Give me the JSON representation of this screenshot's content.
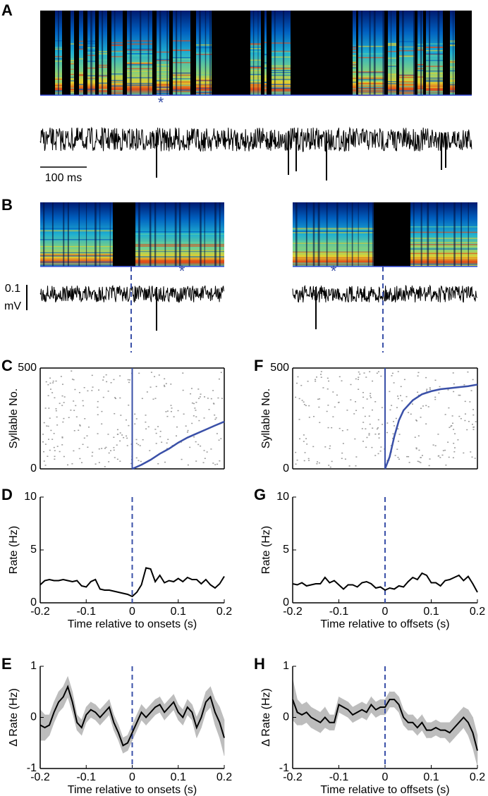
{
  "panels": {
    "A": {
      "label": "A",
      "marker": "*",
      "scale_bar": "100 ms"
    },
    "B": {
      "label": "B",
      "scale_top": "0.1",
      "scale_unit": "mV",
      "markers": [
        "*",
        "*"
      ]
    }
  },
  "chart_data": [
    {
      "type": "raster",
      "label": "C",
      "ylabel": "Syllable No.",
      "xlim": [
        -0.2,
        0.2
      ],
      "ylim": [
        0,
        500
      ],
      "yticks": [
        0,
        500
      ],
      "vline": 0,
      "vline_style": "solid",
      "color": "#3a50a8",
      "frame": "box",
      "curve_x": [
        0,
        0.02,
        0.04,
        0.06,
        0.08,
        0.1,
        0.12,
        0.14,
        0.16,
        0.18,
        0.2
      ],
      "curve_y": [
        0,
        20,
        45,
        75,
        100,
        130,
        155,
        175,
        195,
        215,
        234
      ]
    },
    {
      "type": "raster",
      "label": "F",
      "ylabel": "Syllable No.",
      "xlim": [
        -0.2,
        0.2
      ],
      "ylim": [
        0,
        500
      ],
      "yticks": [
        0,
        500
      ],
      "vline": 0,
      "vline_style": "solid",
      "color": "#3a50a8",
      "frame": "box",
      "curve_x": [
        0,
        0.01,
        0.02,
        0.03,
        0.04,
        0.06,
        0.08,
        0.1,
        0.12,
        0.14,
        0.16,
        0.18,
        0.2
      ],
      "curve_y": [
        0,
        60,
        160,
        240,
        290,
        340,
        370,
        385,
        395,
        400,
        405,
        410,
        418
      ]
    },
    {
      "type": "line",
      "label": "D",
      "ylabel": "Rate (Hz)",
      "xlabel": "Time relative to onsets (s)",
      "xlim": [
        -0.2,
        0.2
      ],
      "ylim": [
        0,
        10
      ],
      "xticks": [
        -0.2,
        -0.1,
        0,
        0.1,
        0.2
      ],
      "yticks": [
        0,
        5,
        10
      ],
      "vline": 0,
      "vline_style": "dashed",
      "frame": "axes",
      "x": [
        -0.2,
        -0.19,
        -0.18,
        -0.17,
        -0.16,
        -0.15,
        -0.14,
        -0.13,
        -0.12,
        -0.11,
        -0.1,
        -0.09,
        -0.08,
        -0.07,
        -0.06,
        -0.05,
        -0.04,
        -0.03,
        -0.02,
        -0.01,
        0,
        0.01,
        0.02,
        0.03,
        0.04,
        0.05,
        0.06,
        0.07,
        0.08,
        0.09,
        0.1,
        0.11,
        0.12,
        0.13,
        0.14,
        0.15,
        0.16,
        0.17,
        0.18,
        0.19,
        0.2
      ],
      "series": [
        {
          "color": "#000000",
          "values": [
            1.7,
            2.1,
            2.2,
            2.1,
            2.1,
            2.2,
            2.1,
            2.0,
            2.1,
            1.6,
            1.5,
            2.0,
            2.2,
            1.3,
            1.2,
            1.2,
            1.1,
            1.0,
            0.9,
            0.8,
            0.6,
            1.0,
            1.7,
            3.3,
            3.2,
            2.0,
            2.6,
            1.9,
            2.1,
            2.0,
            2.3,
            2.0,
            2.4,
            2.2,
            2.2,
            1.8,
            2.2,
            1.7,
            1.4,
            1.8,
            2.5
          ]
        }
      ]
    },
    {
      "type": "line",
      "label": "G",
      "ylabel": "Rate (Hz)",
      "xlabel": "Time relative to offsets (s)",
      "xlim": [
        -0.2,
        0.2
      ],
      "ylim": [
        0,
        10
      ],
      "xticks": [
        -0.2,
        -0.1,
        0,
        0.1,
        0.2
      ],
      "yticks": [
        0,
        5,
        10
      ],
      "vline": 0,
      "vline_style": "dashed",
      "frame": "axes",
      "x": [
        -0.2,
        -0.19,
        -0.18,
        -0.17,
        -0.16,
        -0.15,
        -0.14,
        -0.13,
        -0.12,
        -0.11,
        -0.1,
        -0.09,
        -0.08,
        -0.07,
        -0.06,
        -0.05,
        -0.04,
        -0.03,
        -0.02,
        -0.01,
        0,
        0.01,
        0.02,
        0.03,
        0.04,
        0.05,
        0.06,
        0.07,
        0.08,
        0.09,
        0.1,
        0.11,
        0.12,
        0.13,
        0.14,
        0.15,
        0.16,
        0.17,
        0.18,
        0.19,
        0.2
      ],
      "series": [
        {
          "color": "#000000",
          "values": [
            1.8,
            1.7,
            1.9,
            1.6,
            1.7,
            1.8,
            1.8,
            2.4,
            1.9,
            2.1,
            1.7,
            1.3,
            1.7,
            1.7,
            1.5,
            1.9,
            2.0,
            1.8,
            1.4,
            1.5,
            1.2,
            1.4,
            1.3,
            1.6,
            1.5,
            2.0,
            2.4,
            2.2,
            2.8,
            2.6,
            1.9,
            1.9,
            1.6,
            2.1,
            2.2,
            2.4,
            2.6,
            2.1,
            2.5,
            1.8,
            1.0
          ]
        }
      ]
    },
    {
      "type": "line",
      "label": "E",
      "ylabel": "Δ Rate (Hz)",
      "xlabel": "Time relative to onsets (s)",
      "xlim": [
        -0.2,
        0.2
      ],
      "ylim": [
        -1,
        1
      ],
      "xticks": [
        -0.2,
        -0.1,
        0,
        0.1,
        0.2
      ],
      "yticks": [
        -1,
        0,
        1
      ],
      "vline": 0,
      "vline_style": "dashed",
      "frame": "axes",
      "band_color": "#bdbdbd",
      "x": [
        -0.2,
        -0.19,
        -0.18,
        -0.17,
        -0.16,
        -0.15,
        -0.14,
        -0.13,
        -0.12,
        -0.11,
        -0.1,
        -0.09,
        -0.08,
        -0.07,
        -0.06,
        -0.05,
        -0.04,
        -0.03,
        -0.02,
        -0.01,
        0,
        0.01,
        0.02,
        0.03,
        0.04,
        0.05,
        0.06,
        0.07,
        0.08,
        0.09,
        0.1,
        0.11,
        0.12,
        0.13,
        0.14,
        0.15,
        0.16,
        0.17,
        0.18,
        0.19,
        0.2
      ],
      "series": [
        {
          "color": "#000000",
          "values": [
            -0.15,
            -0.2,
            -0.15,
            0.1,
            0.3,
            0.4,
            0.6,
            0.3,
            -0.1,
            -0.2,
            0.05,
            0.15,
            0.1,
            0.0,
            0.1,
            0.2,
            -0.1,
            -0.3,
            -0.55,
            -0.5,
            -0.3,
            -0.1,
            0.1,
            0.0,
            0.1,
            0.2,
            0.25,
            0.1,
            0.2,
            0.3,
            0.1,
            0.0,
            0.2,
            0.1,
            -0.2,
            0.0,
            0.3,
            0.4,
            0.1,
            -0.1,
            -0.4
          ],
          "errors": [
            0.3,
            0.25,
            0.2,
            0.2,
            0.2,
            0.2,
            0.2,
            0.2,
            0.15,
            0.15,
            0.15,
            0.15,
            0.15,
            0.15,
            0.15,
            0.15,
            0.15,
            0.15,
            0.15,
            0.15,
            0.15,
            0.15,
            0.15,
            0.15,
            0.15,
            0.15,
            0.15,
            0.15,
            0.15,
            0.15,
            0.15,
            0.15,
            0.15,
            0.15,
            0.2,
            0.2,
            0.2,
            0.2,
            0.25,
            0.3,
            0.35
          ]
        }
      ]
    },
    {
      "type": "line",
      "label": "H",
      "ylabel": "Δ Rate (Hz)",
      "xlabel": "Time relative to offsets (s)",
      "xlim": [
        -0.2,
        0.2
      ],
      "ylim": [
        -1,
        1
      ],
      "xticks": [
        -0.2,
        -0.1,
        0,
        0.1,
        0.2
      ],
      "yticks": [
        -1,
        0,
        1
      ],
      "vline": 0,
      "vline_style": "dashed",
      "frame": "axes",
      "band_color": "#bdbdbd",
      "x": [
        -0.2,
        -0.19,
        -0.18,
        -0.17,
        -0.16,
        -0.15,
        -0.14,
        -0.13,
        -0.12,
        -0.11,
        -0.1,
        -0.09,
        -0.08,
        -0.07,
        -0.06,
        -0.05,
        -0.04,
        -0.03,
        -0.02,
        -0.01,
        0,
        0.01,
        0.02,
        0.03,
        0.04,
        0.05,
        0.06,
        0.07,
        0.08,
        0.09,
        0.1,
        0.11,
        0.12,
        0.13,
        0.14,
        0.15,
        0.16,
        0.17,
        0.18,
        0.19,
        0.2
      ],
      "series": [
        {
          "color": "#000000",
          "values": [
            0.35,
            0.1,
            0.05,
            0.1,
            0.0,
            -0.05,
            -0.1,
            0.0,
            -0.1,
            -0.1,
            0.25,
            0.2,
            0.15,
            0.05,
            0.1,
            0.15,
            0.1,
            0.25,
            0.15,
            0.2,
            0.2,
            0.35,
            0.35,
            0.25,
            0.0,
            -0.1,
            -0.1,
            -0.2,
            -0.1,
            -0.25,
            -0.25,
            -0.2,
            -0.25,
            -0.25,
            -0.3,
            -0.2,
            -0.1,
            0.0,
            -0.1,
            -0.3,
            -0.65
          ],
          "errors": [
            0.4,
            0.25,
            0.2,
            0.2,
            0.2,
            0.2,
            0.2,
            0.2,
            0.15,
            0.15,
            0.15,
            0.15,
            0.15,
            0.15,
            0.15,
            0.15,
            0.15,
            0.15,
            0.15,
            0.15,
            0.15,
            0.15,
            0.15,
            0.15,
            0.15,
            0.15,
            0.15,
            0.15,
            0.15,
            0.15,
            0.15,
            0.15,
            0.15,
            0.15,
            0.2,
            0.2,
            0.2,
            0.2,
            0.25,
            0.3,
            0.3
          ]
        }
      ]
    }
  ]
}
